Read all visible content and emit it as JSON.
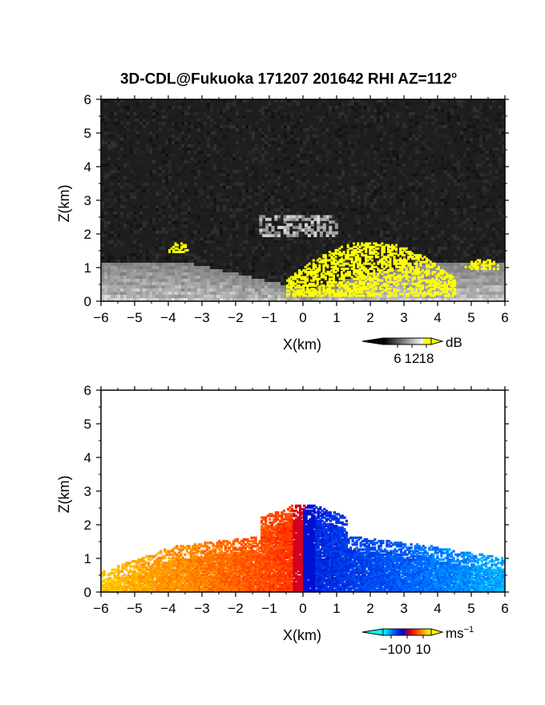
{
  "title": {
    "text": "3D-CDL@Fukuoka 171207 201642 RHI AZ=112",
    "degree_mark": "o"
  },
  "chart_data": [
    {
      "type": "heatmap",
      "name": "reflectivity-rhi",
      "xlabel": "X(km)",
      "ylabel": "Z(km)",
      "xlim": [
        -6,
        6
      ],
      "ylim": [
        0,
        6
      ],
      "xticks": [
        "-6",
        "-5",
        "-4",
        "-3",
        "-2",
        "-1",
        "0",
        "1",
        "2",
        "3",
        "4",
        "5",
        "6"
      ],
      "yticks": [
        "0",
        "1",
        "2",
        "3",
        "4",
        "5",
        "6"
      ],
      "grid": false,
      "background_color": "#1e1e1e",
      "colorbar": {
        "unit": "dB",
        "ticks": [
          "6",
          "12",
          "18"
        ],
        "tick_values": [
          6,
          12,
          18
        ],
        "range": [
          0,
          20
        ],
        "colors": [
          "#000000",
          "#ffffff",
          "#ffff00"
        ]
      },
      "features": [
        {
          "kind": "gray-fan",
          "z_top_km": 1.2,
          "x_range": [
            -6,
            6
          ]
        },
        {
          "kind": "gray-layer",
          "x_range": [
            -1.3,
            1.0
          ],
          "z_range": [
            2.0,
            2.6
          ]
        },
        {
          "kind": "yellow-high-echo",
          "x_range": [
            -0.5,
            4.5
          ],
          "z_range": [
            0.2,
            1.8
          ]
        },
        {
          "kind": "yellow-high-echo",
          "x_range": [
            -4.0,
            -3.4
          ],
          "z_range": [
            1.5,
            1.8
          ]
        },
        {
          "kind": "yellow-high-echo",
          "x_range": [
            4.8,
            5.8
          ],
          "z_range": [
            1.0,
            1.3
          ]
        }
      ]
    },
    {
      "type": "heatmap",
      "name": "doppler-velocity-rhi",
      "xlabel": "X(km)",
      "ylabel": "Z(km)",
      "xlim": [
        -6,
        6
      ],
      "ylim": [
        0,
        6
      ],
      "xticks": [
        "-6",
        "-5",
        "-4",
        "-3",
        "-2",
        "-1",
        "0",
        "1",
        "2",
        "3",
        "4",
        "5",
        "6"
      ],
      "yticks": [
        "0",
        "1",
        "2",
        "3",
        "4",
        "5",
        "6"
      ],
      "grid": false,
      "background_color": "#ffffff",
      "colorbar": {
        "unit": "ms",
        "unit_exponent": "-1",
        "ticks": [
          "−10",
          "0",
          "10"
        ],
        "tick_values": [
          -10,
          0,
          10
        ],
        "range": [
          -15,
          15
        ],
        "colors": [
          "#00ffff",
          "#0066ff",
          "#0000cc",
          "#ff0000",
          "#ff8800",
          "#ffff00"
        ]
      },
      "features": [
        {
          "kind": "positive-velocity-region",
          "x_range": [
            -6.0,
            0.0
          ],
          "z_range": [
            0.0,
            2.6
          ],
          "velocity_ms": [
            5,
            12
          ]
        },
        {
          "kind": "negative-velocity-region",
          "x_range": [
            0.0,
            6.0
          ],
          "z_range": [
            0.0,
            2.6
          ],
          "velocity_ms": [
            -12,
            -5
          ]
        }
      ]
    }
  ]
}
